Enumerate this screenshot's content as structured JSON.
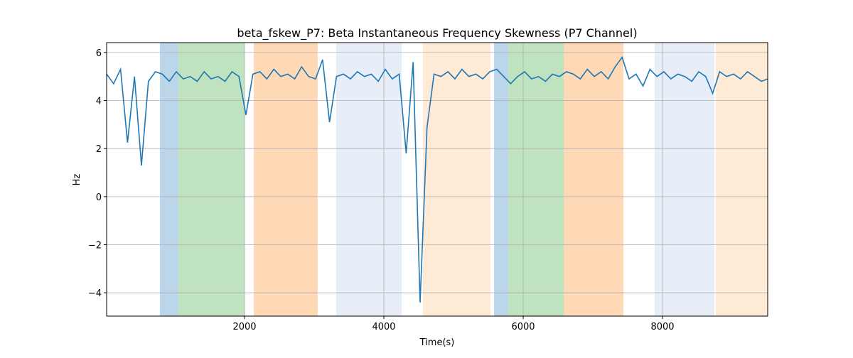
{
  "chart_data": {
    "type": "line",
    "title": "beta_fskew_P7: Beta Instantaneous Frequency Skewness (P7 Channel)",
    "xlabel": "Time(s)",
    "ylabel": "Hz",
    "xlim": [
      20,
      9510
    ],
    "ylim": [
      -4.97,
      6.41
    ],
    "xticks": [
      2000,
      4000,
      6000,
      8000
    ],
    "yticks": [
      {
        "value": -4,
        "label": "−4"
      },
      {
        "value": -2,
        "label": "−2"
      },
      0,
      2,
      4,
      6
    ],
    "grid": true,
    "span_alpha": 0.3,
    "spans": [
      {
        "start": 785,
        "end": 1050,
        "color": "#1f77b4"
      },
      {
        "start": 1050,
        "end": 2000,
        "color": "#2ca02c"
      },
      {
        "start": 2133,
        "end": 3050,
        "color": "#ff7f0e"
      },
      {
        "start": 3316,
        "end": 4255,
        "color": "#aec7e8"
      },
      {
        "start": 4561,
        "end": 5531,
        "color": "#ffbb78"
      },
      {
        "start": 5582,
        "end": 5786,
        "color": "#1f77b4"
      },
      {
        "start": 5786,
        "end": 6582,
        "color": "#2ca02c"
      },
      {
        "start": 6582,
        "end": 7439,
        "color": "#ff7f0e"
      },
      {
        "start": 7888,
        "end": 8745,
        "color": "#aec7e8"
      },
      {
        "start": 8765,
        "end": 9510,
        "color": "#ffbb78"
      }
    ],
    "series": [
      {
        "name": "beta_fskew_P7",
        "color": "#1f77b4",
        "x": [
          20,
          120,
          220,
          320,
          420,
          520,
          620,
          720,
          820,
          920,
          1020,
          1120,
          1220,
          1320,
          1420,
          1520,
          1620,
          1720,
          1820,
          1920,
          2020,
          2120,
          2220,
          2320,
          2420,
          2520,
          2620,
          2720,
          2820,
          2920,
          3020,
          3120,
          3220,
          3320,
          3420,
          3520,
          3620,
          3720,
          3820,
          3920,
          4020,
          4120,
          4220,
          4320,
          4420,
          4520,
          4620,
          4720,
          4820,
          4920,
          5020,
          5120,
          5220,
          5320,
          5420,
          5520,
          5620,
          5720,
          5820,
          5920,
          6020,
          6120,
          6220,
          6320,
          6420,
          6520,
          6620,
          6720,
          6820,
          6920,
          7020,
          7120,
          7220,
          7320,
          7420,
          7520,
          7620,
          7720,
          7820,
          7920,
          8020,
          8120,
          8220,
          8320,
          8420,
          8520,
          8620,
          8720,
          8820,
          8920,
          9020,
          9120,
          9220,
          9320,
          9420,
          9510
        ],
        "values": [
          5.1,
          4.7,
          5.3,
          2.25,
          5.0,
          1.3,
          4.8,
          5.2,
          5.1,
          4.8,
          5.2,
          4.9,
          5.0,
          4.8,
          5.2,
          4.9,
          5.0,
          4.8,
          5.2,
          5.0,
          3.4,
          5.1,
          5.2,
          4.9,
          5.3,
          5.0,
          5.1,
          4.9,
          5.4,
          5.0,
          4.9,
          5.7,
          3.1,
          5.0,
          5.1,
          4.9,
          5.2,
          5.0,
          5.1,
          4.8,
          5.3,
          4.9,
          5.1,
          1.8,
          5.6,
          -4.4,
          2.9,
          5.1,
          5.0,
          5.2,
          4.9,
          5.3,
          5.0,
          5.1,
          4.9,
          5.2,
          5.3,
          5.0,
          4.7,
          5.0,
          5.2,
          4.9,
          5.0,
          4.8,
          5.1,
          5.0,
          5.2,
          5.1,
          4.9,
          5.3,
          5.0,
          5.2,
          4.9,
          5.4,
          5.8,
          4.9,
          5.1,
          4.6,
          5.3,
          5.0,
          5.2,
          4.9,
          5.1,
          5.0,
          4.8,
          5.2,
          5.0,
          4.3,
          5.2,
          5.0,
          5.1,
          4.9,
          5.2,
          5.0,
          4.8,
          4.9
        ]
      }
    ]
  }
}
